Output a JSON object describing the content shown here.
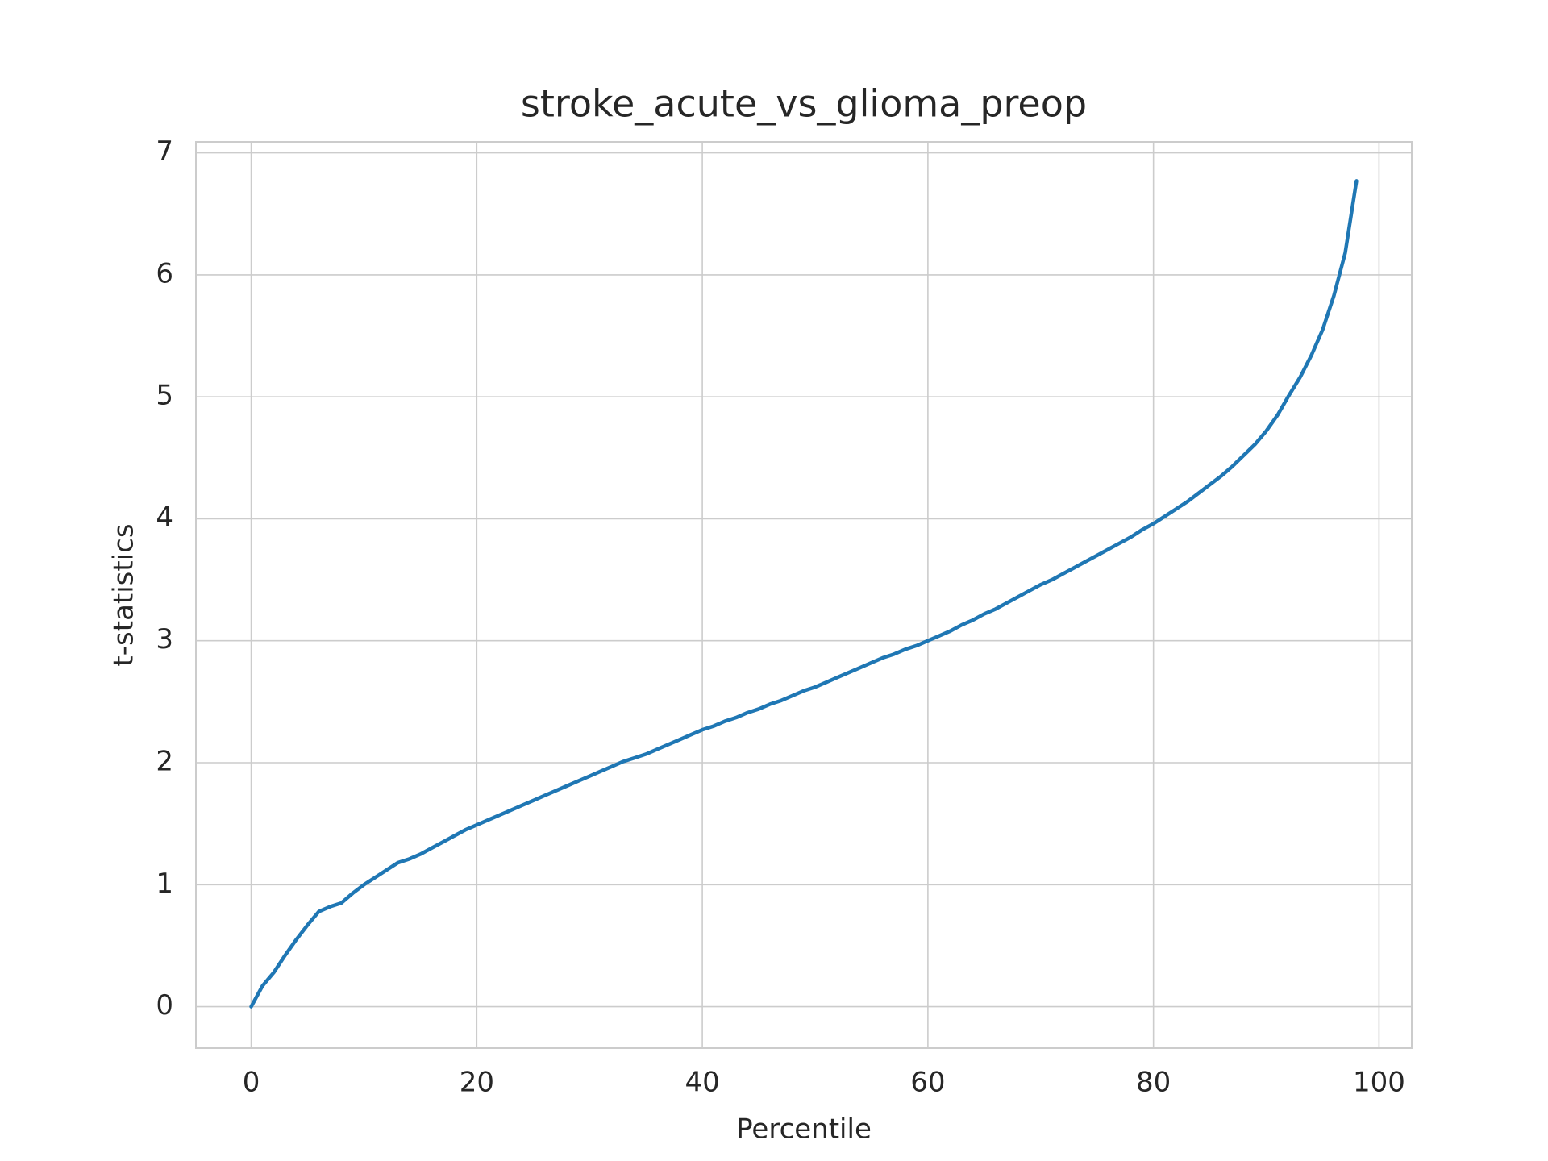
{
  "chart_data": {
    "type": "line",
    "title": "stroke_acute_vs_glioma_preop",
    "xlabel": "Percentile",
    "ylabel": "t-statistics",
    "x": [
      0,
      1,
      2,
      3,
      4,
      5,
      6,
      7,
      8,
      9,
      10,
      11,
      12,
      13,
      14,
      15,
      16,
      17,
      18,
      19,
      20,
      21,
      22,
      23,
      24,
      25,
      26,
      27,
      28,
      29,
      30,
      31,
      32,
      33,
      34,
      35,
      36,
      37,
      38,
      39,
      40,
      41,
      42,
      43,
      44,
      45,
      46,
      47,
      48,
      49,
      50,
      51,
      52,
      53,
      54,
      55,
      56,
      57,
      58,
      59,
      60,
      61,
      62,
      63,
      64,
      65,
      66,
      67,
      68,
      69,
      70,
      71,
      72,
      73,
      74,
      75,
      76,
      77,
      78,
      79,
      80,
      81,
      82,
      83,
      84,
      85,
      86,
      87,
      88,
      89,
      90,
      91,
      92,
      93,
      94,
      95,
      96,
      97,
      98
    ],
    "series": [
      {
        "name": "t-statistics",
        "color": "#1f77b4",
        "values": [
          0,
          0.17,
          0.28,
          0.42,
          0.55,
          0.67,
          0.78,
          0.82,
          0.85,
          0.93,
          1.0,
          1.06,
          1.12,
          1.18,
          1.21,
          1.25,
          1.3,
          1.35,
          1.4,
          1.45,
          1.49,
          1.53,
          1.57,
          1.61,
          1.65,
          1.69,
          1.73,
          1.77,
          1.81,
          1.85,
          1.89,
          1.93,
          1.97,
          2.01,
          2.04,
          2.07,
          2.11,
          2.15,
          2.19,
          2.23,
          2.27,
          2.3,
          2.34,
          2.37,
          2.41,
          2.44,
          2.48,
          2.51,
          2.55,
          2.59,
          2.62,
          2.66,
          2.7,
          2.74,
          2.78,
          2.82,
          2.86,
          2.89,
          2.93,
          2.96,
          3.0,
          3.04,
          3.08,
          3.13,
          3.17,
          3.22,
          3.26,
          3.31,
          3.36,
          3.41,
          3.46,
          3.5,
          3.55,
          3.6,
          3.65,
          3.7,
          3.75,
          3.8,
          3.85,
          3.91,
          3.96,
          4.02,
          4.08,
          4.14,
          4.21,
          4.28,
          4.35,
          4.43,
          4.52,
          4.61,
          4.72,
          4.85,
          5.01,
          5.16,
          5.34,
          5.55,
          5.83,
          6.18,
          6.77
        ]
      }
    ],
    "xlim": [
      -4.9,
      102.9
    ],
    "xticks": [
      0,
      20,
      40,
      60,
      80,
      100
    ],
    "ylim": [
      -0.34,
      7.09
    ],
    "yticks": [
      0,
      1,
      2,
      3,
      4,
      5,
      6,
      7
    ],
    "grid": true
  }
}
